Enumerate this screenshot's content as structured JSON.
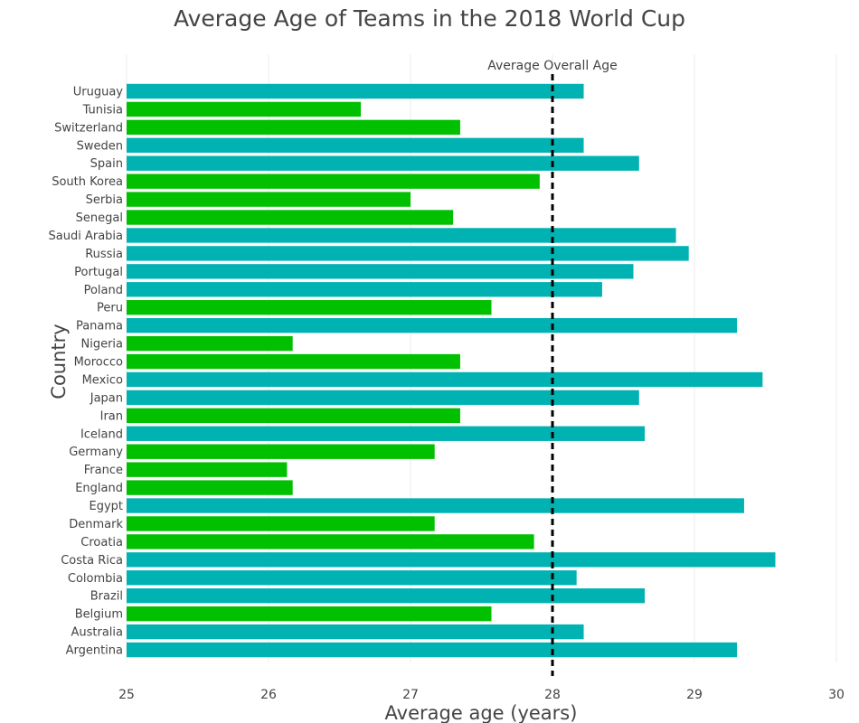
{
  "chart_data": {
    "type": "bar",
    "orientation": "horizontal",
    "title": "Average Age of Teams in the 2018 World Cup",
    "xlabel": "Average age (years)",
    "ylabel": "Country",
    "xlim": [
      25,
      30
    ],
    "x_ticks": [
      "25",
      "26",
      "27",
      "28",
      "29",
      "30"
    ],
    "grid": true,
    "colors": {
      "above_average": "#00b2b2",
      "below_average": "#00c000",
      "reference_line": "#000000"
    },
    "reference_line": {
      "value": 28.0,
      "label": "Average Overall Age"
    },
    "categories": [
      "Uruguay",
      "Tunisia",
      "Switzerland",
      "Sweden",
      "Spain",
      "South Korea",
      "Serbia",
      "Senegal",
      "Saudi Arabia",
      "Russia",
      "Portugal",
      "Poland",
      "Peru",
      "Panama",
      "Nigeria",
      "Morocco",
      "Mexico",
      "Japan",
      "Iran",
      "Iceland",
      "Germany",
      "France",
      "England",
      "Egypt",
      "Denmark",
      "Croatia",
      "Costa Rica",
      "Colombia",
      "Brazil",
      "Belgium",
      "Australia",
      "Argentina"
    ],
    "values": [
      28.22,
      26.65,
      27.35,
      28.22,
      28.61,
      27.91,
      27.0,
      27.3,
      28.87,
      28.96,
      28.57,
      28.35,
      27.57,
      29.3,
      26.17,
      27.35,
      29.48,
      28.61,
      27.35,
      28.65,
      27.17,
      26.13,
      26.17,
      29.35,
      27.17,
      27.87,
      29.57,
      28.17,
      28.65,
      27.57,
      28.22,
      29.3
    ]
  }
}
